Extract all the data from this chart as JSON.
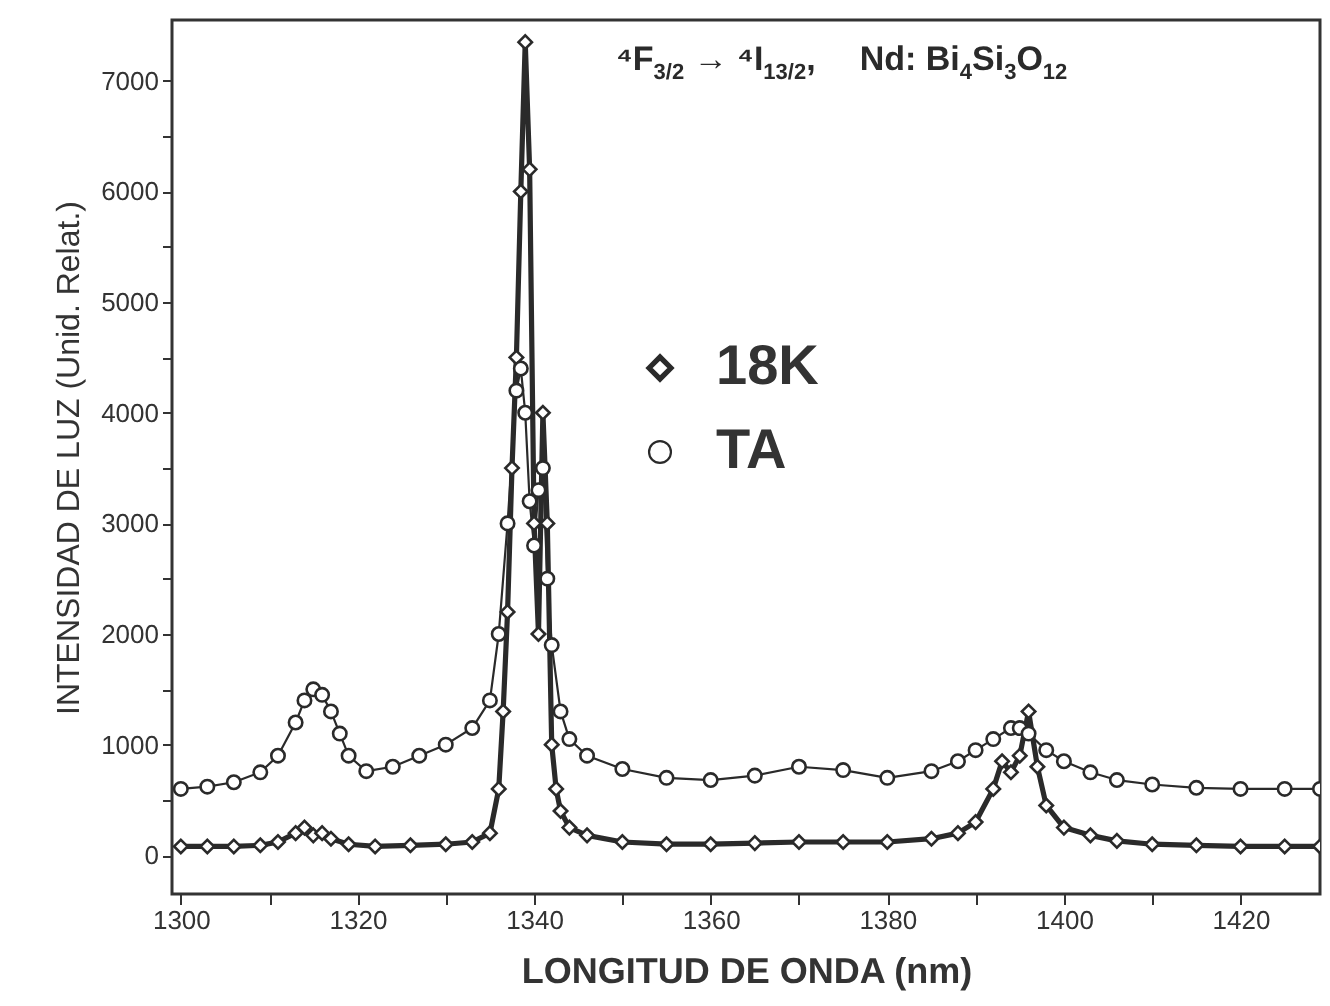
{
  "chart_data": {
    "type": "line",
    "xlabel": "LONGITUD DE ONDA (nm)",
    "ylabel": "INTENSIDAD DE LUZ (Unid. Relat.)",
    "annotations": [
      "⁴F$_{3/2}$ → ⁴I$_{13/2}$,",
      "Nd: Bi$_{4}$Si$_{3}$O$_{12}$"
    ],
    "xlim": [
      1299,
      1429
    ],
    "ylim": [
      -350,
      7550
    ],
    "xticks": [
      1300,
      {
        "value": 1310,
        "label": null
      },
      1320,
      {
        "value": 1330,
        "label": null
      },
      1340,
      {
        "value": 1350,
        "label": null
      },
      1360,
      {
        "value": 1370,
        "label": null
      },
      1380,
      {
        "value": 1390,
        "label": null
      },
      1400,
      {
        "value": 1410,
        "label": null
      },
      1420
    ],
    "yticks": [
      0,
      {
        "value": 500,
        "label": null
      },
      1000,
      {
        "value": 1500,
        "label": null
      },
      2000,
      {
        "value": 2500,
        "label": null
      },
      3000,
      {
        "value": 3500,
        "label": null
      },
      4000,
      {
        "value": 4500,
        "label": null
      },
      5000,
      {
        "value": 5500,
        "label": null
      },
      6000,
      {
        "value": 6500,
        "label": null
      },
      7000
    ],
    "grid": false,
    "legend": "top",
    "line_style": "solid",
    "series": [
      {
        "name": "18K",
        "color": "#2a2a2a",
        "marker": "diamond",
        "x": [
          1300,
          1303,
          1306,
          1309,
          1311,
          1313,
          1314,
          1315,
          1316,
          1317,
          1319,
          1322,
          1326,
          1330,
          1333,
          1335,
          1336,
          1336.5,
          1337,
          1337.5,
          1338,
          1338.5,
          1339,
          1339.5,
          1340,
          1340.5,
          1341,
          1341.5,
          1342,
          1342.5,
          1343,
          1344,
          1346,
          1350,
          1355,
          1360,
          1365,
          1370,
          1375,
          1380,
          1385,
          1388,
          1390,
          1392,
          1393,
          1394,
          1395,
          1396,
          1397,
          1398,
          1400,
          1403,
          1406,
          1410,
          1415,
          1420,
          1425,
          1429
        ],
        "values": [
          80,
          80,
          80,
          90,
          120,
          200,
          250,
          180,
          200,
          150,
          100,
          80,
          90,
          100,
          120,
          200,
          600,
          1300,
          2200,
          3500,
          4500,
          6000,
          7350,
          6200,
          3000,
          2000,
          4000,
          3000,
          1000,
          600,
          400,
          250,
          180,
          120,
          100,
          100,
          110,
          120,
          120,
          120,
          150,
          200,
          300,
          600,
          850,
          750,
          900,
          1300,
          800,
          450,
          250,
          180,
          130,
          100,
          90,
          80,
          80,
          80
        ]
      },
      {
        "name": "TA",
        "color": "#2a2a2a",
        "marker": "circle",
        "x": [
          1300,
          1303,
          1306,
          1309,
          1311,
          1313,
          1314,
          1315,
          1316,
          1317,
          1318,
          1319,
          1321,
          1324,
          1327,
          1330,
          1333,
          1335,
          1336,
          1337,
          1338,
          1338.5,
          1339,
          1339.5,
          1340,
          1340.5,
          1341,
          1341.5,
          1342,
          1343,
          1344,
          1346,
          1350,
          1355,
          1360,
          1365,
          1370,
          1375,
          1380,
          1385,
          1388,
          1390,
          1392,
          1394,
          1395,
          1396,
          1398,
          1400,
          1403,
          1406,
          1410,
          1415,
          1420,
          1425,
          1429
        ],
        "values": [
          600,
          620,
          660,
          750,
          900,
          1200,
          1400,
          1500,
          1450,
          1300,
          1100,
          900,
          760,
          800,
          900,
          1000,
          1150,
          1400,
          2000,
          3000,
          4200,
          4400,
          4000,
          3200,
          2800,
          3300,
          3500,
          2500,
          1900,
          1300,
          1050,
          900,
          780,
          700,
          680,
          720,
          800,
          770,
          700,
          760,
          850,
          950,
          1050,
          1150,
          1150,
          1100,
          950,
          850,
          750,
          680,
          640,
          610,
          600,
          600,
          600
        ]
      }
    ]
  }
}
